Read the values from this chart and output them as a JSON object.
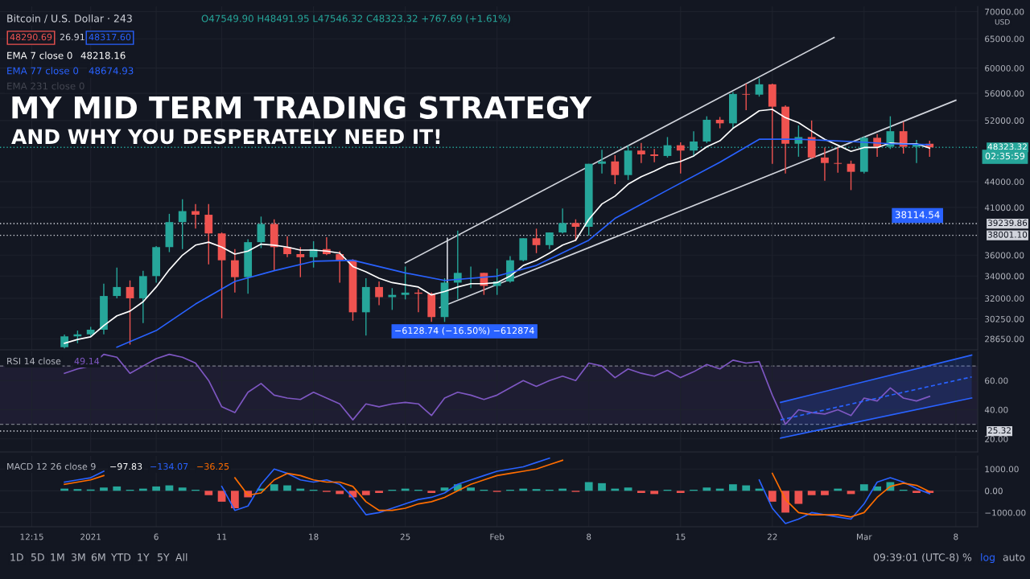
{
  "chart_data": [
    {
      "type": "candlestick",
      "title": "MY MID TERM TRADING STRATEGY",
      "subtitle": "AND WHY YOU DESPERATELY NEED IT!",
      "log": true,
      "grid": true,
      "tick_labels": "y",
      "x": [
        "2020-12-30",
        "2020-12-31",
        "2021-01-01",
        "2021-01-02",
        "2021-01-03",
        "2021-01-04",
        "2021-01-05",
        "2021-01-06",
        "2021-01-07",
        "2021-01-08",
        "2021-01-09",
        "2021-01-10",
        "2021-01-11",
        "2021-01-12",
        "2021-01-13",
        "2021-01-14",
        "2021-01-15",
        "2021-01-16",
        "2021-01-17",
        "2021-01-18",
        "2021-01-19",
        "2021-01-20",
        "2021-01-21",
        "2021-01-22",
        "2021-01-23",
        "2021-01-24",
        "2021-01-25",
        "2021-01-26",
        "2021-01-27",
        "2021-01-28",
        "2021-01-29",
        "2021-01-30",
        "2021-01-31",
        "2021-02-01",
        "2021-02-02",
        "2021-02-03",
        "2021-02-04",
        "2021-02-05",
        "2021-02-06",
        "2021-02-07",
        "2021-02-08",
        "2021-02-09",
        "2021-02-10",
        "2021-02-11",
        "2021-02-12",
        "2021-02-13",
        "2021-02-14",
        "2021-02-15",
        "2021-02-16",
        "2021-02-17",
        "2021-02-18",
        "2021-02-19",
        "2021-02-20",
        "2021-02-21",
        "2021-02-22",
        "2021-02-23",
        "2021-02-24",
        "2021-02-25",
        "2021-02-26",
        "2021-02-27",
        "2021-02-28",
        "2021-03-01",
        "2021-03-02",
        "2021-03-03",
        "2021-03-04",
        "2021-03-05",
        "2021-03-06"
      ],
      "ohlc": [
        [
          28000,
          28990,
          27900,
          28840
        ],
        [
          28840,
          29300,
          28300,
          29000
        ],
        [
          29000,
          29600,
          28800,
          29370
        ],
        [
          29370,
          33300,
          29000,
          32200
        ],
        [
          32200,
          34800,
          32000,
          33000
        ],
        [
          33000,
          33600,
          28200,
          32000
        ],
        [
          32000,
          34500,
          29900,
          34000
        ],
        [
          34000,
          36900,
          33400,
          36800
        ],
        [
          36800,
          40300,
          36300,
          39400
        ],
        [
          39400,
          41950,
          36600,
          40600
        ],
        [
          40600,
          41400,
          38700,
          40200
        ],
        [
          40200,
          41400,
          35100,
          38200
        ],
        [
          38200,
          38300,
          30300,
          35500
        ],
        [
          35500,
          36600,
          32500,
          33900
        ],
        [
          33900,
          37600,
          32400,
          37300
        ],
        [
          37300,
          40000,
          36700,
          39200
        ],
        [
          39200,
          39700,
          34500,
          36800
        ],
        [
          36800,
          37900,
          35800,
          36100
        ],
        [
          36100,
          36800,
          33900,
          35800
        ],
        [
          35800,
          37400,
          34800,
          36600
        ],
        [
          36600,
          37800,
          36000,
          36100
        ],
        [
          36100,
          36400,
          33400,
          35500
        ],
        [
          35500,
          35600,
          30100,
          30800
        ],
        [
          30800,
          33800,
          28900,
          33000
        ],
        [
          33000,
          33500,
          31400,
          32100
        ],
        [
          32100,
          32900,
          31000,
          32300
        ],
        [
          32300,
          34900,
          31900,
          32500
        ],
        [
          32500,
          32800,
          30800,
          32400
        ],
        [
          32400,
          32500,
          30000,
          30400
        ],
        [
          30400,
          33800,
          30000,
          33400
        ],
        [
          33400,
          38500,
          31900,
          34300
        ],
        [
          34300,
          34900,
          32900,
          34300
        ],
        [
          34300,
          34300,
          32300,
          33100
        ],
        [
          33100,
          34700,
          32300,
          33500
        ],
        [
          33500,
          35900,
          33400,
          35500
        ],
        [
          35500,
          37700,
          35400,
          37700
        ],
        [
          37700,
          38700,
          36200,
          37000
        ],
        [
          37000,
          38300,
          36600,
          38300
        ],
        [
          38300,
          40900,
          38200,
          39300
        ],
        [
          39300,
          39700,
          37400,
          38900
        ],
        [
          38900,
          46200,
          38000,
          46200
        ],
        [
          46200,
          48000,
          45000,
          46500
        ],
        [
          46500,
          47300,
          43700,
          44800
        ],
        [
          44800,
          48600,
          44200,
          47900
        ],
        [
          47900,
          48900,
          46300,
          47400
        ],
        [
          47400,
          48100,
          46400,
          47200
        ],
        [
          47200,
          49700,
          47000,
          48600
        ],
        [
          48600,
          49000,
          45000,
          47900
        ],
        [
          47900,
          50500,
          47100,
          49100
        ],
        [
          49100,
          52600,
          48900,
          52100
        ],
        [
          52100,
          52500,
          50900,
          51600
        ],
        [
          51600,
          56200,
          50900,
          55900
        ],
        [
          55900,
          57500,
          53500,
          55800
        ],
        [
          55800,
          58350,
          55500,
          57400
        ],
        [
          57400,
          57500,
          46200,
          54000
        ],
        [
          54000,
          54200,
          45000,
          48800
        ],
        [
          48800,
          51300,
          47100,
          49700
        ],
        [
          49700,
          52000,
          46900,
          47000
        ],
        [
          47000,
          48300,
          44100,
          46300
        ],
        [
          46300,
          48300,
          45100,
          46200
        ],
        [
          46200,
          46600,
          43000,
          45200
        ],
        [
          45200,
          49800,
          45000,
          49600
        ],
        [
          49600,
          50100,
          47100,
          48400
        ],
        [
          48400,
          52600,
          48100,
          50500
        ],
        [
          50500,
          51800,
          47500,
          48400
        ],
        [
          48400,
          49300,
          46300,
          48800
        ],
        [
          48800,
          49200,
          47100,
          48323.32
        ]
      ],
      "series": [
        {
          "type": "line",
          "name": "EMA 7 close 0",
          "color": "#ffffff",
          "values": [
            28300,
            28600,
            28800,
            29700,
            30500,
            30900,
            31700,
            33000,
            34600,
            36000,
            37000,
            37300,
            36800,
            36100,
            36400,
            37100,
            37000,
            36800,
            36500,
            36500,
            36400,
            36200,
            34900,
            34400,
            33800,
            33400,
            33200,
            33000,
            32300,
            32600,
            33000,
            33300,
            33300,
            33400,
            34000,
            35000,
            35500,
            36200,
            37000,
            37500,
            39700,
            41400,
            42300,
            43700,
            44600,
            45300,
            46100,
            46500,
            47200,
            48400,
            49200,
            50900,
            52100,
            53400,
            53600,
            52400,
            51700,
            50500,
            49400,
            48600,
            47800,
            48300,
            48300,
            48900,
            48800,
            48800,
            48218.16
          ]
        },
        {
          "type": "line",
          "name": "EMA 77 close 0",
          "color": "#2962ff",
          "x": [
            "2021-01-03",
            "2021-01-06",
            "2021-01-09",
            "2021-01-12",
            "2021-01-15",
            "2021-01-18",
            "2021-01-21",
            "2021-01-25",
            "2021-01-28",
            "2021-02-01",
            "2021-02-04",
            "2021-02-08",
            "2021-02-10",
            "2021-02-14",
            "2021-02-18",
            "2021-02-21",
            "2021-02-24",
            "2021-02-28",
            "2021-03-03",
            "2021-03-06"
          ],
          "values": [
            28000,
            29300,
            31500,
            33500,
            34500,
            35400,
            35500,
            34300,
            33600,
            34000,
            35000,
            37500,
            39800,
            43000,
            46400,
            49400,
            49400,
            49100,
            48800,
            48674.93
          ]
        },
        {
          "type": "line",
          "color": "#d1d4dc",
          "x": [
            "2021-01-25",
            "2021-02-26T17:00"
          ],
          "values": [
            35250,
            65230
          ]
        },
        {
          "type": "line",
          "color": "#d1d4dc",
          "x": [
            "2021-01-27T15:00",
            "2021-03-08"
          ],
          "values": [
            31200,
            54950
          ]
        },
        {
          "type": "line",
          "color": "#d1d4dc",
          "x": [
            "2021-01-28T05:00",
            "2021-01-28T05:00"
          ],
          "values": [
            31200,
            37700
          ]
        }
      ],
      "xlim": [
        "2020-12-25T02:00",
        "2021-03-09T16:00"
      ],
      "xticks": [
        {
          "value": "2020-12-27T12:15",
          "label": null
        },
        {
          "value": "2021-01-01",
          "label": null
        },
        {
          "value": "2021-01-06",
          "label": null
        },
        {
          "value": "2021-01-11",
          "label": null
        },
        {
          "value": "2021-01-18",
          "label": null
        },
        {
          "value": "2021-01-25",
          "label": null
        },
        {
          "value": "2021-02-01",
          "label": null
        },
        {
          "value": "2021-02-08",
          "label": null
        },
        {
          "value": "2021-02-15",
          "label": null
        },
        {
          "value": "2021-02-22",
          "label": null
        },
        {
          "value": "2021-03-01",
          "label": null
        },
        {
          "value": "2021-03-08",
          "label": null
        }
      ],
      "ylim": [
        27800,
        71000
      ],
      "yticks": [
        {
          "value": 28650,
          "label": "28650.00"
        },
        {
          "value": 30250,
          "label": "30250.00"
        },
        {
          "value": 32000,
          "label": "32000.00"
        },
        {
          "value": 34000,
          "label": "34000.00"
        },
        {
          "value": 36000,
          "label": "36000.00"
        },
        {
          "value": 41000,
          "label": "41000.00"
        },
        {
          "value": 44000,
          "label": "44000.00"
        },
        {
          "value": 52000,
          "label": "52000.00"
        },
        {
          "value": 56000,
          "label": "56000.00"
        },
        {
          "value": 60000,
          "label": "60000.00"
        },
        {
          "value": 65000,
          "label": "65000.00"
        },
        {
          "value": 70000,
          "label": "70000.00"
        }
      ],
      "ref_lines": [
        {
          "axis": "y",
          "value": 48323.32,
          "label": "48323.32",
          "color": "#26a69a",
          "line_style": "dotted"
        },
        {
          "axis": "y",
          "value": 39239.86,
          "label": "39239.86",
          "color": "#d1d4dc",
          "line_style": "dotted"
        },
        {
          "axis": "y",
          "value": 38001.1,
          "label": "38001.10",
          "color": "#d1d4dc",
          "line_style": "dotted"
        }
      ],
      "annotations": [
        "Bitcoin / U.S. Dollar · 243",
        "O47549.90 H48491.95 L47546.32 C48323.32 +767.69 (+1.61%)",
        "48290.69",
        "26.91",
        "48317.60",
        "48218.16",
        "48674.93",
        "EMA 231 close 0",
        "USD",
        "02:35:59",
        "38114.54",
        "−6128.74 (−16.50%) −612874"
      ]
    },
    {
      "type": "line",
      "grid": true,
      "tick_labels": "y",
      "x": [
        "2020-12-30",
        "2020-12-31",
        "2021-01-01",
        "2021-01-02",
        "2021-01-03",
        "2021-01-04",
        "2021-01-05",
        "2021-01-06",
        "2021-01-07",
        "2021-01-08",
        "2021-01-09",
        "2021-01-10",
        "2021-01-11",
        "2021-01-12",
        "2021-01-13",
        "2021-01-14",
        "2021-01-15",
        "2021-01-16",
        "2021-01-17",
        "2021-01-18",
        "2021-01-19",
        "2021-01-20",
        "2021-01-21",
        "2021-01-22",
        "2021-01-23",
        "2021-01-24",
        "2021-01-25",
        "2021-01-26",
        "2021-01-27",
        "2021-01-28",
        "2021-01-29",
        "2021-01-30",
        "2021-01-31",
        "2021-02-01",
        "2021-02-02",
        "2021-02-03",
        "2021-02-04",
        "2021-02-05",
        "2021-02-06",
        "2021-02-07",
        "2021-02-08",
        "2021-02-09",
        "2021-02-10",
        "2021-02-11",
        "2021-02-12",
        "2021-02-13",
        "2021-02-14",
        "2021-02-15",
        "2021-02-16",
        "2021-02-17",
        "2021-02-18",
        "2021-02-19",
        "2021-02-20",
        "2021-02-21",
        "2021-02-22",
        "2021-02-23",
        "2021-02-24",
        "2021-02-25",
        "2021-02-26",
        "2021-02-27",
        "2021-02-28",
        "2021-03-01",
        "2021-03-02",
        "2021-03-03",
        "2021-03-04",
        "2021-03-05",
        "2021-03-06"
      ],
      "series": [
        {
          "color": "#7e57c2",
          "values": [
            65,
            68,
            70,
            78,
            76,
            65,
            70,
            75,
            78,
            76,
            72,
            60,
            42,
            38,
            52,
            58,
            50,
            48,
            47,
            52,
            48,
            44,
            33,
            44,
            42,
            44,
            45,
            44,
            36,
            48,
            52,
            50,
            47,
            50,
            55,
            60,
            56,
            60,
            63,
            60,
            72,
            70,
            62,
            68,
            65,
            63,
            67,
            62,
            66,
            71,
            68,
            74,
            72,
            73,
            50,
            30,
            40,
            38,
            37,
            40,
            36,
            48,
            46,
            55,
            48,
            46,
            49.14
          ]
        },
        {
          "color": "#2962ff",
          "x": [
            "2021-02-22T15:00",
            "2021-03-09T05:00"
          ],
          "values": [
            45,
            77.5
          ]
        },
        {
          "color": "#2962ff",
          "x": [
            "2021-02-22T15:00",
            "2021-03-09T05:00"
          ],
          "values": [
            20.5,
            48
          ]
        },
        {
          "color": "#2962ff",
          "line_style": "dashed",
          "x": [
            "2021-02-22T15:00",
            "2021-03-09T05:00"
          ],
          "values": [
            33,
            62.5
          ],
          "lower": [
            20.5,
            48
          ],
          "upper": [
            45,
            77.5
          ]
        }
      ],
      "xlim": [
        "2020-12-25T02:00",
        "2021-03-09T16:00"
      ],
      "xticks": [
        {
          "value": "2020-12-27T12:15",
          "label": null
        },
        {
          "value": "2021-01-01",
          "label": null
        },
        {
          "value": "2021-01-06",
          "label": null
        },
        {
          "value": "2021-01-11",
          "label": null
        },
        {
          "value": "2021-01-18",
          "label": null
        },
        {
          "value": "2021-01-25",
          "label": null
        },
        {
          "value": "2021-02-01",
          "label": null
        },
        {
          "value": "2021-02-08",
          "label": null
        },
        {
          "value": "2021-02-15",
          "label": null
        },
        {
          "value": "2021-02-22",
          "label": null
        },
        {
          "value": "2021-03-01",
          "label": null
        },
        {
          "value": "2021-03-08",
          "label": null
        }
      ],
      "ylim": [
        11,
        80
      ],
      "yticks": [
        {
          "value": 20,
          "label": "20.00"
        },
        {
          "value": 40,
          "label": "40.00"
        },
        {
          "value": 60,
          "label": "60.00"
        }
      ],
      "ref_lines": [
        {
          "axis": "y",
          "value": 70,
          "color": "#787b86",
          "line_style": "dashed"
        },
        {
          "axis": "y",
          "value": 30,
          "color": "#787b86",
          "line_style": "dashed"
        },
        {
          "axis": "y",
          "value": 25.32,
          "label": "25.32",
          "color": "#d1d4dc",
          "line_style": "dotted"
        }
      ],
      "bands": [
        {
          "axis": "y",
          "from": 30,
          "to": 70,
          "color": "#7e57c2"
        }
      ],
      "annotations": [
        "RSI 14 close",
        "49.14"
      ]
    },
    {
      "type": "bar",
      "grid": true,
      "x": [
        "2020-12-30",
        "2020-12-31",
        "2021-01-01",
        "2021-01-02",
        "2021-01-03",
        "2021-01-04",
        "2021-01-05",
        "2021-01-06",
        "2021-01-07",
        "2021-01-08",
        "2021-01-09",
        "2021-01-10",
        "2021-01-11",
        "2021-01-12",
        "2021-01-13",
        "2021-01-14",
        "2021-01-15",
        "2021-01-16",
        "2021-01-17",
        "2021-01-18",
        "2021-01-19",
        "2021-01-20",
        "2021-01-21",
        "2021-01-22",
        "2021-01-23",
        "2021-01-24",
        "2021-01-25",
        "2021-01-26",
        "2021-01-27",
        "2021-01-28",
        "2021-01-29",
        "2021-01-30",
        "2021-01-31",
        "2021-02-01",
        "2021-02-02",
        "2021-02-03",
        "2021-02-04",
        "2021-02-05",
        "2021-02-06",
        "2021-02-07",
        "2021-02-08",
        "2021-02-09",
        "2021-02-10",
        "2021-02-11",
        "2021-02-12",
        "2021-02-13",
        "2021-02-14",
        "2021-02-15",
        "2021-02-16",
        "2021-02-17",
        "2021-02-18",
        "2021-02-19",
        "2021-02-20",
        "2021-02-21",
        "2021-02-22",
        "2021-02-23",
        "2021-02-24",
        "2021-02-25",
        "2021-02-26",
        "2021-02-27",
        "2021-02-28",
        "2021-03-01",
        "2021-03-02",
        "2021-03-03",
        "2021-03-04",
        "2021-03-05",
        "2021-03-06"
      ],
      "series": [
        {
          "type": "bar",
          "values": [
            100,
            80,
            60,
            150,
            200,
            50,
            100,
            200,
            250,
            150,
            50,
            -200,
            -500,
            -800,
            -300,
            100,
            300,
            250,
            100,
            50,
            -50,
            -150,
            -300,
            -200,
            -100,
            50,
            100,
            50,
            -100,
            150,
            300,
            150,
            50,
            -50,
            50,
            100,
            80,
            50,
            100,
            -50,
            400,
            350,
            100,
            150,
            -100,
            -150,
            50,
            -100,
            50,
            150,
            100,
            300,
            250,
            100,
            -500,
            -1000,
            -600,
            -200,
            -200,
            100,
            -150,
            300,
            200,
            400,
            50,
            -100,
            -97.83
          ],
          "colors": [
            "#26a69a",
            "#26a69a",
            "#26a69a",
            "#26a69a",
            "#26a69a",
            "#26a69a",
            "#26a69a",
            "#26a69a",
            "#26a69a",
            "#26a69a",
            "#26a69a",
            "#ef5350",
            "#ef5350",
            "#ef5350",
            "#ef5350",
            "#26a69a",
            "#26a69a",
            "#26a69a",
            "#26a69a",
            "#26a69a",
            "#ef5350",
            "#ef5350",
            "#ef5350",
            "#ef5350",
            "#ef5350",
            "#26a69a",
            "#26a69a",
            "#26a69a",
            "#ef5350",
            "#26a69a",
            "#26a69a",
            "#26a69a",
            "#26a69a",
            "#ef5350",
            "#26a69a",
            "#26a69a",
            "#26a69a",
            "#26a69a",
            "#26a69a",
            "#ef5350",
            "#26a69a",
            "#26a69a",
            "#26a69a",
            "#26a69a",
            "#ef5350",
            "#ef5350",
            "#26a69a",
            "#ef5350",
            "#26a69a",
            "#26a69a",
            "#26a69a",
            "#26a69a",
            "#26a69a",
            "#26a69a",
            "#ef5350",
            "#ef5350",
            "#ef5350",
            "#ef5350",
            "#ef5350",
            "#26a69a",
            "#ef5350",
            "#26a69a",
            "#26a69a",
            "#26a69a",
            "#26a69a",
            "#ef5350",
            "#ef5350"
          ]
        },
        {
          "type": "line",
          "color": "#2962ff",
          "values": [
            400,
            500,
            600,
            900,
            null,
            null,
            null,
            null,
            null,
            null,
            null,
            null,
            200,
            -900,
            -700,
            300,
            1000,
            800,
            500,
            400,
            500,
            300,
            -300,
            -1100,
            -1000,
            -800,
            -600,
            -400,
            -300,
            -100,
            300,
            500,
            700,
            900,
            1000,
            1100,
            1300,
            1500,
            null,
            null,
            null,
            null,
            null,
            null,
            null,
            null,
            null,
            null,
            null,
            null,
            null,
            null,
            null,
            500,
            -800,
            -1500,
            -1300,
            -1000,
            -1100,
            -1200,
            -1300,
            -600,
            400,
            600,
            400,
            100,
            -134.07
          ]
        },
        {
          "type": "line",
          "color": "#ff6d00",
          "values": [
            300,
            400,
            500,
            700,
            null,
            null,
            null,
            null,
            null,
            null,
            null,
            null,
            null,
            600,
            -200,
            -100,
            500,
            800,
            700,
            500,
            400,
            400,
            200,
            -500,
            -900,
            -900,
            -800,
            -600,
            -500,
            -300,
            0,
            300,
            500,
            700,
            800,
            900,
            1000,
            1200,
            1400,
            null,
            null,
            null,
            null,
            null,
            null,
            null,
            null,
            null,
            null,
            null,
            null,
            null,
            null,
            null,
            800,
            -400,
            -1000,
            -1100,
            -1100,
            -1100,
            -1200,
            -1000,
            -300,
            200,
            350,
            250,
            -36.25
          ]
        }
      ],
      "xlim": [
        "2020-12-25T02:00",
        "2021-03-09T16:00"
      ],
      "xticks": [
        {
          "value": "2020-12-27T12:15",
          "label": "12:15"
        },
        {
          "value": "2021-01-01",
          "label": "2021"
        },
        {
          "value": "2021-01-06",
          "label": "6"
        },
        {
          "value": "2021-01-11",
          "label": "11"
        },
        {
          "value": "2021-01-18",
          "label": "18"
        },
        {
          "value": "2021-01-25",
          "label": "25"
        },
        {
          "value": "2021-02-01",
          "label": "Feb"
        },
        {
          "value": "2021-02-08",
          "label": "8"
        },
        {
          "value": "2021-02-15",
          "label": "15"
        },
        {
          "value": "2021-02-22",
          "label": "22"
        },
        {
          "value": "2021-03-01",
          "label": "Mar"
        },
        {
          "value": "2021-03-08",
          "label": "8"
        }
      ],
      "ylim": [
        -1650,
        1600
      ],
      "yticks": [
        {
          "value": -1000,
          "label": "−1000.00"
        },
        {
          "value": 0,
          "label": "0.00"
        },
        {
          "value": 1000,
          "label": "1000.00"
        }
      ],
      "annotations": [
        "MACD 12 26 close 9",
        "−97.83",
        "−134.07",
        "−36.25",
        "1D",
        "5D",
        "1M",
        "3M",
        "6M",
        "YTD",
        "1Y",
        "5Y",
        "All",
        "09:39:01 (UTC-8)",
        "%",
        "log",
        "auto"
      ]
    }
  ]
}
